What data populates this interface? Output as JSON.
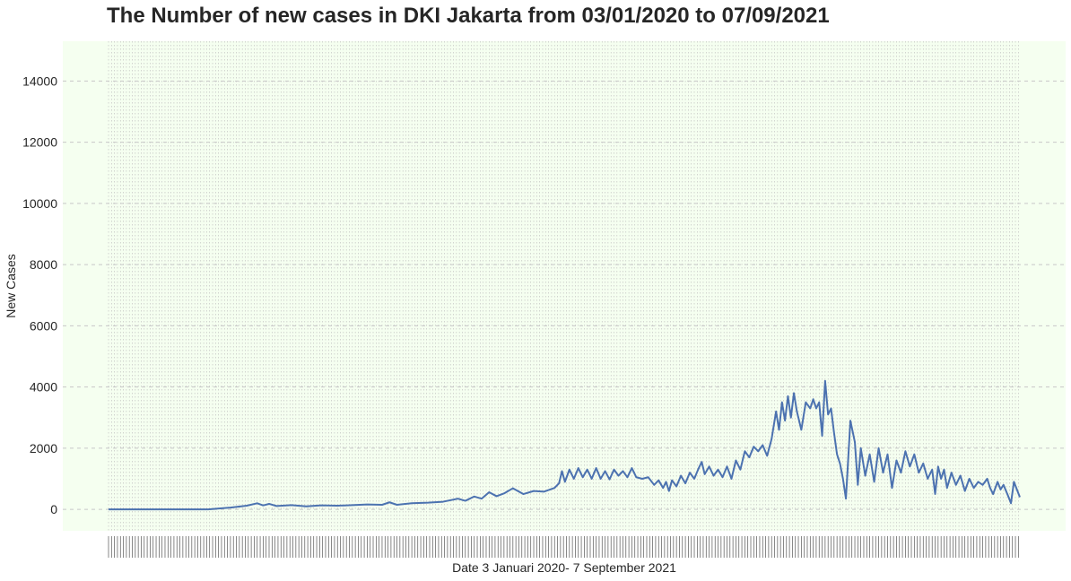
{
  "chart_data": {
    "type": "line",
    "title": "The Number of new cases in DKI Jakarta from 03/01/2020 to 07/09/2021",
    "xlabel": "Date 3 Januari 2020- 7 September 2021",
    "ylabel": "New Cases",
    "x_range": [
      "2020-01-03",
      "2021-09-07"
    ],
    "ylim": [
      -700,
      15300
    ],
    "yticks": [
      0,
      2000,
      4000,
      6000,
      8000,
      10000,
      12000,
      14000
    ],
    "grid": true,
    "legend": "none",
    "series": [
      {
        "color": "#4c72b0",
        "points": [
          [
            "2020-01-03",
            0
          ],
          [
            "2020-02-10",
            0
          ],
          [
            "2020-03-10",
            0
          ],
          [
            "2020-03-25",
            60
          ],
          [
            "2020-04-05",
            120
          ],
          [
            "2020-04-12",
            200
          ],
          [
            "2020-04-16",
            130
          ],
          [
            "2020-04-20",
            180
          ],
          [
            "2020-04-25",
            110
          ],
          [
            "2020-05-05",
            140
          ],
          [
            "2020-05-15",
            100
          ],
          [
            "2020-05-25",
            130
          ],
          [
            "2020-06-05",
            120
          ],
          [
            "2020-06-15",
            140
          ],
          [
            "2020-06-25",
            160
          ],
          [
            "2020-07-05",
            150
          ],
          [
            "2020-07-10",
            230
          ],
          [
            "2020-07-15",
            150
          ],
          [
            "2020-07-25",
            200
          ],
          [
            "2020-08-05",
            220
          ],
          [
            "2020-08-15",
            250
          ],
          [
            "2020-08-25",
            350
          ],
          [
            "2020-08-30",
            280
          ],
          [
            "2020-09-05",
            420
          ],
          [
            "2020-09-10",
            350
          ],
          [
            "2020-09-15",
            560
          ],
          [
            "2020-09-20",
            430
          ],
          [
            "2020-09-25",
            520
          ],
          [
            "2020-10-01",
            690
          ],
          [
            "2020-10-08",
            500
          ],
          [
            "2020-10-15",
            600
          ],
          [
            "2020-10-22",
            580
          ],
          [
            "2020-10-29",
            700
          ],
          [
            "2020-11-01",
            850
          ],
          [
            "2020-11-03",
            1250
          ],
          [
            "2020-11-05",
            900
          ],
          [
            "2020-11-08",
            1300
          ],
          [
            "2020-11-11",
            1000
          ],
          [
            "2020-11-14",
            1350
          ],
          [
            "2020-11-17",
            1050
          ],
          [
            "2020-11-20",
            1300
          ],
          [
            "2020-11-23",
            1000
          ],
          [
            "2020-11-26",
            1350
          ],
          [
            "2020-11-29",
            1000
          ],
          [
            "2020-12-02",
            1250
          ],
          [
            "2020-12-05",
            980
          ],
          [
            "2020-12-08",
            1300
          ],
          [
            "2020-12-11",
            1100
          ],
          [
            "2020-12-14",
            1250
          ],
          [
            "2020-12-17",
            1050
          ],
          [
            "2020-12-20",
            1350
          ],
          [
            "2020-12-23",
            1050
          ],
          [
            "2020-12-27",
            1000
          ],
          [
            "2020-12-31",
            1050
          ],
          [
            "2021-01-04",
            800
          ],
          [
            "2021-01-07",
            950
          ],
          [
            "2021-01-10",
            700
          ],
          [
            "2021-01-12",
            900
          ],
          [
            "2021-01-14",
            600
          ],
          [
            "2021-01-16",
            950
          ],
          [
            "2021-01-19",
            750
          ],
          [
            "2021-01-22",
            1100
          ],
          [
            "2021-01-25",
            850
          ],
          [
            "2021-01-28",
            1200
          ],
          [
            "2021-01-31",
            1000
          ],
          [
            "2021-02-03",
            1350
          ],
          [
            "2021-02-05",
            1550
          ],
          [
            "2021-02-07",
            1150
          ],
          [
            "2021-02-10",
            1400
          ],
          [
            "2021-02-13",
            1100
          ],
          [
            "2021-02-16",
            1300
          ],
          [
            "2021-02-19",
            1050
          ],
          [
            "2021-02-22",
            1400
          ],
          [
            "2021-02-25",
            1000
          ],
          [
            "2021-02-28",
            1600
          ],
          [
            "2021-03-03",
            1300
          ],
          [
            "2021-03-06",
            1900
          ],
          [
            "2021-03-09",
            1700
          ],
          [
            "2021-03-12",
            2050
          ],
          [
            "2021-03-15",
            1900
          ],
          [
            "2021-03-18",
            2100
          ],
          [
            "2021-03-21",
            1750
          ],
          [
            "2021-03-24",
            2300
          ],
          [
            "2021-03-27",
            3200
          ],
          [
            "2021-03-29",
            2600
          ],
          [
            "2021-03-31",
            3500
          ],
          [
            "2021-04-02",
            2900
          ],
          [
            "2021-04-04",
            3700
          ],
          [
            "2021-04-06",
            3000
          ],
          [
            "2021-04-08",
            3800
          ],
          [
            "2021-04-10",
            3200
          ],
          [
            "2021-04-13",
            2600
          ],
          [
            "2021-04-16",
            3500
          ],
          [
            "2021-04-19",
            3300
          ],
          [
            "2021-04-21",
            3600
          ],
          [
            "2021-04-23",
            3300
          ],
          [
            "2021-04-25",
            3500
          ],
          [
            "2021-04-27",
            2400
          ],
          [
            "2021-04-29",
            4200
          ],
          [
            "2021-05-01",
            3100
          ],
          [
            "2021-05-03",
            3300
          ],
          [
            "2021-05-05",
            2500
          ],
          [
            "2021-05-07",
            1800
          ],
          [
            "2021-05-09",
            1500
          ],
          [
            "2021-05-11",
            1000
          ],
          [
            "2021-05-13",
            350
          ],
          [
            "2021-05-16",
            2900
          ],
          [
            "2021-05-19",
            2200
          ],
          [
            "2021-05-21",
            800
          ],
          [
            "2021-05-23",
            2000
          ],
          [
            "2021-05-26",
            1100
          ],
          [
            "2021-05-29",
            1800
          ],
          [
            "2021-06-01",
            900
          ],
          [
            "2021-06-04",
            2000
          ],
          [
            "2021-06-07",
            1200
          ],
          [
            "2021-06-10",
            1800
          ],
          [
            "2021-06-13",
            700
          ],
          [
            "2021-06-16",
            1600
          ],
          [
            "2021-06-19",
            1200
          ],
          [
            "2021-06-22",
            1900
          ],
          [
            "2021-06-25",
            1400
          ],
          [
            "2021-06-28",
            1800
          ],
          [
            "2021-07-01",
            1200
          ],
          [
            "2021-07-04",
            1500
          ],
          [
            "2021-07-07",
            1000
          ],
          [
            "2021-07-10",
            1300
          ],
          [
            "2021-07-12",
            500
          ],
          [
            "2021-07-14",
            1400
          ],
          [
            "2021-07-16",
            1000
          ],
          [
            "2021-07-18",
            1300
          ],
          [
            "2021-07-20",
            700
          ],
          [
            "2021-07-23",
            1200
          ],
          [
            "2021-07-26",
            800
          ],
          [
            "2021-07-29",
            1100
          ],
          [
            "2021-08-01",
            600
          ],
          [
            "2021-08-04",
            1000
          ],
          [
            "2021-08-07",
            700
          ],
          [
            "2021-08-10",
            900
          ],
          [
            "2021-08-13",
            800
          ],
          [
            "2021-08-16",
            1000
          ],
          [
            "2021-08-18",
            700
          ],
          [
            "2021-08-20",
            500
          ],
          [
            "2021-08-23",
            900
          ],
          [
            "2021-08-25",
            650
          ],
          [
            "2021-08-27",
            800
          ],
          [
            "2021-08-30",
            450
          ],
          [
            "2021-09-01",
            200
          ],
          [
            "2021-09-03",
            900
          ],
          [
            "2021-09-07",
            400
          ]
        ]
      }
    ]
  }
}
